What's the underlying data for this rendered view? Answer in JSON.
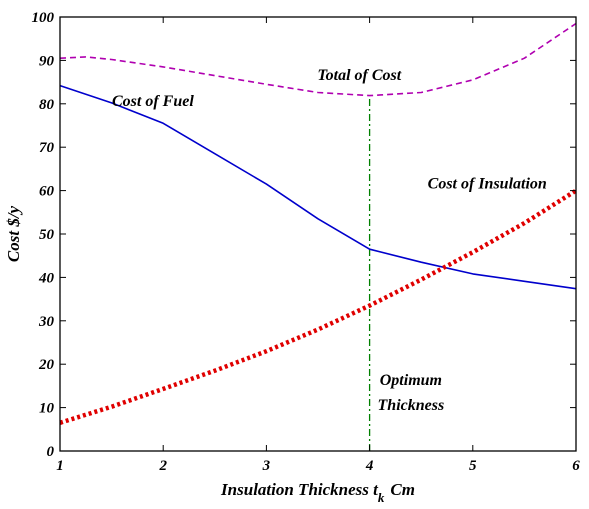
{
  "chart_data": {
    "type": "line",
    "xlabel_main": "Insulation Thickness t",
    "xlabel_sub": "k",
    "xlabel_unit": "Cm",
    "ylabel": "Cost $/y",
    "xlim": [
      1,
      6
    ],
    "ylim": [
      0,
      100
    ],
    "xticks": [
      1,
      2,
      3,
      4,
      5,
      6
    ],
    "yticks": [
      0,
      10,
      20,
      30,
      40,
      50,
      60,
      70,
      80,
      90,
      100
    ],
    "grid": false,
    "series": [
      {
        "name": "Total of Cost",
        "color": "#b000b0",
        "style": "dashed",
        "x": [
          1,
          1.25,
          1.5,
          2,
          2.5,
          3,
          3.5,
          4,
          4.5,
          5,
          5.5,
          6
        ],
        "y": [
          90.5,
          90.8,
          90.2,
          88.5,
          86.5,
          84.5,
          82.6,
          81.9,
          82.6,
          85.5,
          90.5,
          98.5
        ]
      },
      {
        "name": "Cost of Fuel",
        "color": "#0000cc",
        "style": "solid",
        "x": [
          1,
          1.5,
          2,
          2.5,
          3,
          3.5,
          4,
          4.5,
          5,
          5.5,
          6
        ],
        "y": [
          84.2,
          80.2,
          75.5,
          68.5,
          61.5,
          53.5,
          46.5,
          43.5,
          40.8,
          39.1,
          37.4
        ]
      },
      {
        "name": "Cost of Insulation",
        "color": "#e00000",
        "style": "dotted",
        "x": [
          1,
          1.5,
          2,
          2.5,
          3,
          3.5,
          4,
          4.5,
          5,
          5.5,
          6
        ],
        "y": [
          6.5,
          10.2,
          14.3,
          18.5,
          23.0,
          28.0,
          33.5,
          39.5,
          45.8,
          52.5,
          60.0
        ]
      }
    ],
    "vline": {
      "x": 4,
      "ymin": 0,
      "ymax": 81.9,
      "color": "#008000",
      "style": "dashdot"
    },
    "annotations": {
      "total": {
        "text": "Total of Cost",
        "x": 3.9,
        "y": 85.5
      },
      "fuel": {
        "text": "Cost of Fuel",
        "x": 1.9,
        "y": 79.5
      },
      "insulation": {
        "text": "Cost of Insulation",
        "x": 5.14,
        "y": 60.5
      },
      "optimum1": {
        "text": "Optimum",
        "x": 4.4,
        "y": 15.2
      },
      "optimum2": {
        "text": "Thickness",
        "x": 4.4,
        "y": 9.5
      }
    }
  }
}
